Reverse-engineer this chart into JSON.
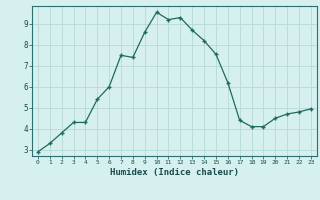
{
  "x": [
    0,
    1,
    2,
    3,
    4,
    5,
    6,
    7,
    8,
    9,
    10,
    11,
    12,
    13,
    14,
    15,
    16,
    17,
    18,
    19,
    20,
    21,
    22,
    23
  ],
  "y": [
    2.9,
    3.3,
    3.8,
    4.3,
    4.3,
    5.4,
    6.0,
    7.5,
    7.4,
    8.6,
    9.55,
    9.2,
    9.3,
    8.7,
    8.2,
    7.55,
    6.2,
    4.4,
    4.1,
    4.1,
    4.5,
    4.7,
    4.8,
    4.95
  ],
  "line_color": "#1f6b5a",
  "marker": "+",
  "marker_size": 3,
  "bg_color": "#d6f0f0",
  "grid_color": "#b8d8d8",
  "axis_color": "#2d6e6e",
  "tick_color": "#1a4a4a",
  "xlabel": "Humidex (Indice chaleur)",
  "xlabel_fontsize": 6.5,
  "ylabel_ticks": [
    3,
    4,
    5,
    6,
    7,
    8,
    9
  ],
  "xlim": [
    -0.5,
    23.5
  ],
  "ylim": [
    2.7,
    9.85
  ]
}
